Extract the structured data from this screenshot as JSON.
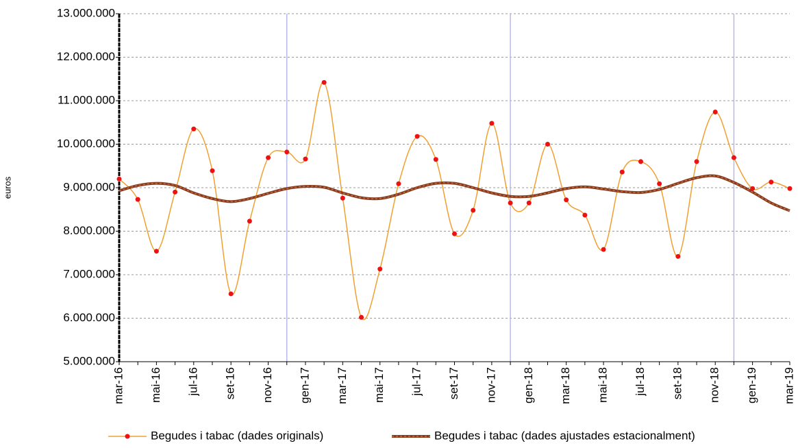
{
  "chart_data": {
    "type": "line",
    "y_label": "euros",
    "categories": [
      "mar-16",
      null,
      "mai-16",
      null,
      "jul-16",
      null,
      "set-16",
      null,
      "nov-16",
      null,
      "gen-17",
      null,
      "mar-17",
      null,
      "mai-17",
      null,
      "jul-17",
      null,
      "set-17",
      null,
      "nov-17",
      null,
      "gen-18",
      null,
      "mar-18",
      null,
      "mai-18",
      null,
      "jul-18",
      null,
      "set-18",
      null,
      "nov-18",
      null,
      "gen-19",
      null,
      "mar-19"
    ],
    "series": [
      {
        "name": "Begudes i tabac (dades originals)",
        "color": "#f0a030",
        "marker_color": "#ee1111",
        "values": [
          9200000,
          8730000,
          7540000,
          8900000,
          10350000,
          9390000,
          6560000,
          8230000,
          9690000,
          9820000,
          9660000,
          11420000,
          8760000,
          6020000,
          7130000,
          9090000,
          10180000,
          9650000,
          7940000,
          8480000,
          10480000,
          8650000,
          8650000,
          10000000,
          8720000,
          8370000,
          7580000,
          9360000,
          9600000,
          9090000,
          7420000,
          9600000,
          10740000,
          9690000,
          8980000,
          9130000,
          8980000
        ]
      },
      {
        "name": "Begudes i tabac (dades ajustades estacionalment)",
        "color": "#8b3a1a",
        "values": [
          8930000,
          9050000,
          9100000,
          9050000,
          8880000,
          8750000,
          8680000,
          8750000,
          8870000,
          8980000,
          9030000,
          9010000,
          8880000,
          8770000,
          8750000,
          8850000,
          9000000,
          9100000,
          9100000,
          9000000,
          8880000,
          8800000,
          8800000,
          8880000,
          8980000,
          9020000,
          8970000,
          8910000,
          8890000,
          8960000,
          9100000,
          9230000,
          9270000,
          9120000,
          8900000,
          8650000,
          8470000
        ]
      }
    ],
    "ylim": [
      5000000,
      13000000
    ],
    "yticks": [
      {
        "value": 5000000,
        "label": "5.000.000"
      },
      {
        "value": 6000000,
        "label": "6.000.000"
      },
      {
        "value": 7000000,
        "label": "7.000.000"
      },
      {
        "value": 8000000,
        "label": "8.000.000"
      },
      {
        "value": 9000000,
        "label": "9.000.000"
      },
      {
        "value": 10000000,
        "label": "10.000.000"
      },
      {
        "value": 11000000,
        "label": "11.000.000"
      },
      {
        "value": 12000000,
        "label": "12.000.000"
      },
      {
        "value": 13000000,
        "label": "13.000.000"
      }
    ],
    "grid": true,
    "legend": "bottom"
  }
}
